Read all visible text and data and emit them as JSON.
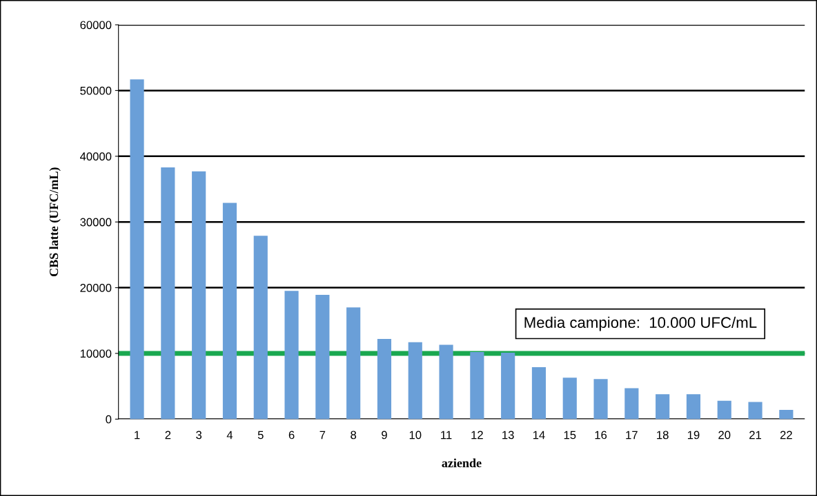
{
  "chart_data": {
    "type": "bar",
    "xlabel": "aziende",
    "ylabel": "CBS latte (UFC/mL)",
    "categories": [
      "1",
      "2",
      "3",
      "4",
      "5",
      "6",
      "7",
      "8",
      "9",
      "10",
      "11",
      "12",
      "13",
      "14",
      "15",
      "16",
      "17",
      "18",
      "19",
      "20",
      "21",
      "22"
    ],
    "values": [
      51700,
      38300,
      37700,
      32900,
      27900,
      19500,
      18900,
      17000,
      12200,
      11700,
      11300,
      10200,
      10100,
      7900,
      6300,
      6100,
      4700,
      3800,
      3800,
      2800,
      2600,
      1400
    ],
    "color": "#6a9fd8",
    "ylim": [
      0,
      60000
    ],
    "yticks": [
      0,
      10000,
      20000,
      30000,
      40000,
      50000,
      60000
    ],
    "grid": "y",
    "ref_lines": [
      {
        "axis": "y",
        "value": 10000,
        "label": "Media campione:  10.000 UFC/mL",
        "color": "#1aa850"
      }
    ]
  }
}
